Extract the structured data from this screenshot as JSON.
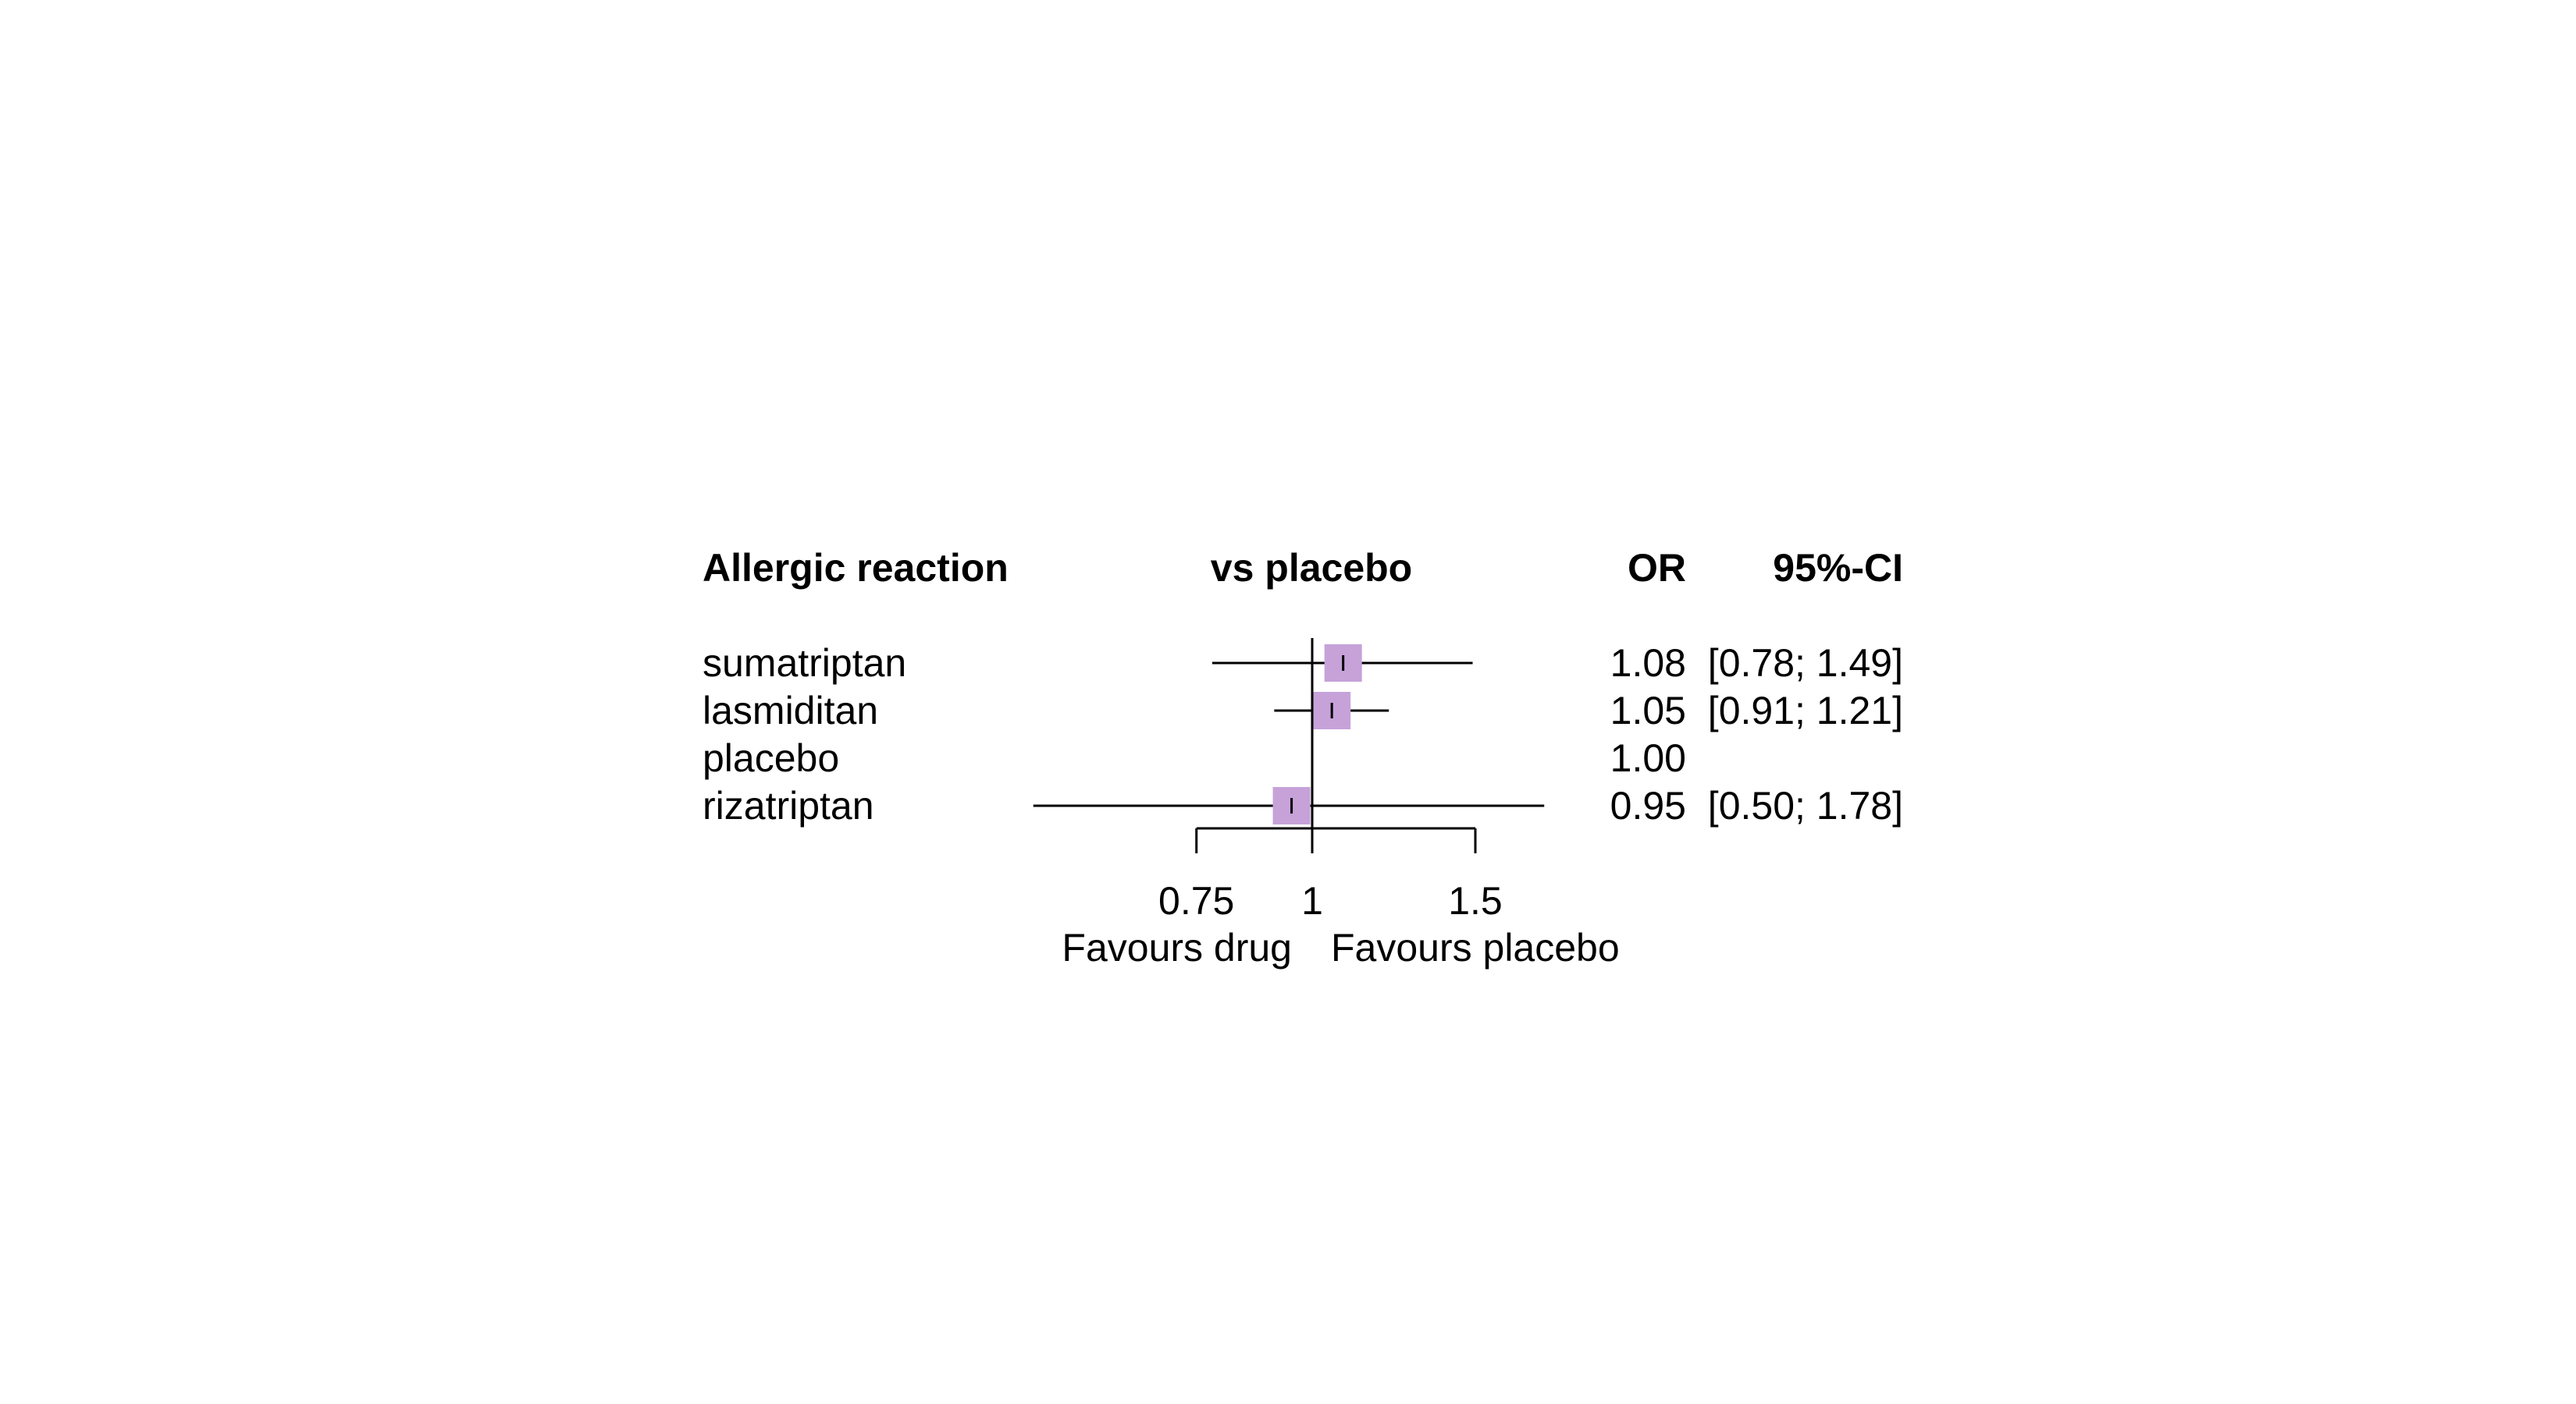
{
  "chart_data": {
    "type": "forest",
    "headers": {
      "label": "Allergic reaction",
      "comparison": "vs placebo",
      "estimate": "OR",
      "ci": "95%-CI"
    },
    "rows": [
      {
        "label": "sumatriptan",
        "or": 1.08,
        "lower": 0.78,
        "upper": 1.49,
        "or_text": "1.08",
        "ci_text": "[0.78; 1.49]"
      },
      {
        "label": "lasmiditan",
        "or": 1.05,
        "lower": 0.91,
        "upper": 1.21,
        "or_text": "1.05",
        "ci_text": "[0.91; 1.21]"
      },
      {
        "label": "placebo",
        "or": 1.0,
        "lower": null,
        "upper": null,
        "or_text": "1.00",
        "ci_text": ""
      },
      {
        "label": "rizatriptan",
        "or": 0.95,
        "lower": 0.5,
        "upper": 1.78,
        "or_text": "0.95",
        "ci_text": "[0.50; 1.78]"
      }
    ],
    "x_scale": "log",
    "x_ticks": [
      0.75,
      1,
      1.5
    ],
    "x_tick_labels": [
      "0.75",
      "1",
      "1.5"
    ],
    "reference_line": 1,
    "favours_left": "Favours drug",
    "favours_right": "Favours placebo",
    "marker_color": "#c6a2d9",
    "line_color": "#000000"
  }
}
